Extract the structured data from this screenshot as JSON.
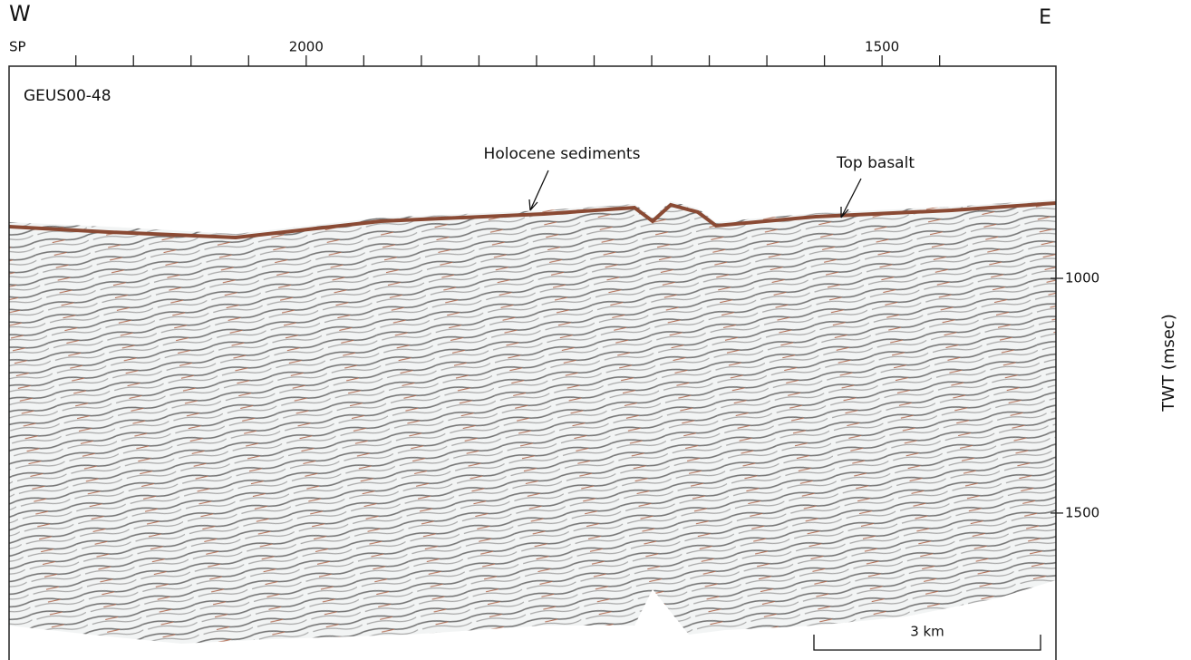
{
  "header": {
    "west": "W",
    "east": "E",
    "sp_label": "SP"
  },
  "section": {
    "name": "GEUS00-48",
    "xlim": [
      2258,
      1349
    ],
    "xticks": [
      2200,
      2150,
      2100,
      2050,
      2000,
      1950,
      1900,
      1850,
      1800,
      1750,
      1700,
      1650,
      1600,
      1550,
      1500,
      1450
    ],
    "xlabels": [
      2000,
      1500
    ],
    "ylim": [
      548,
      1813
    ],
    "yticks": [
      1000,
      1500
    ],
    "ylabel": "TWT (msec)",
    "annotations": [
      "Holocene sediments",
      "Top basalt"
    ],
    "scale_bar": "3 km"
  }
}
